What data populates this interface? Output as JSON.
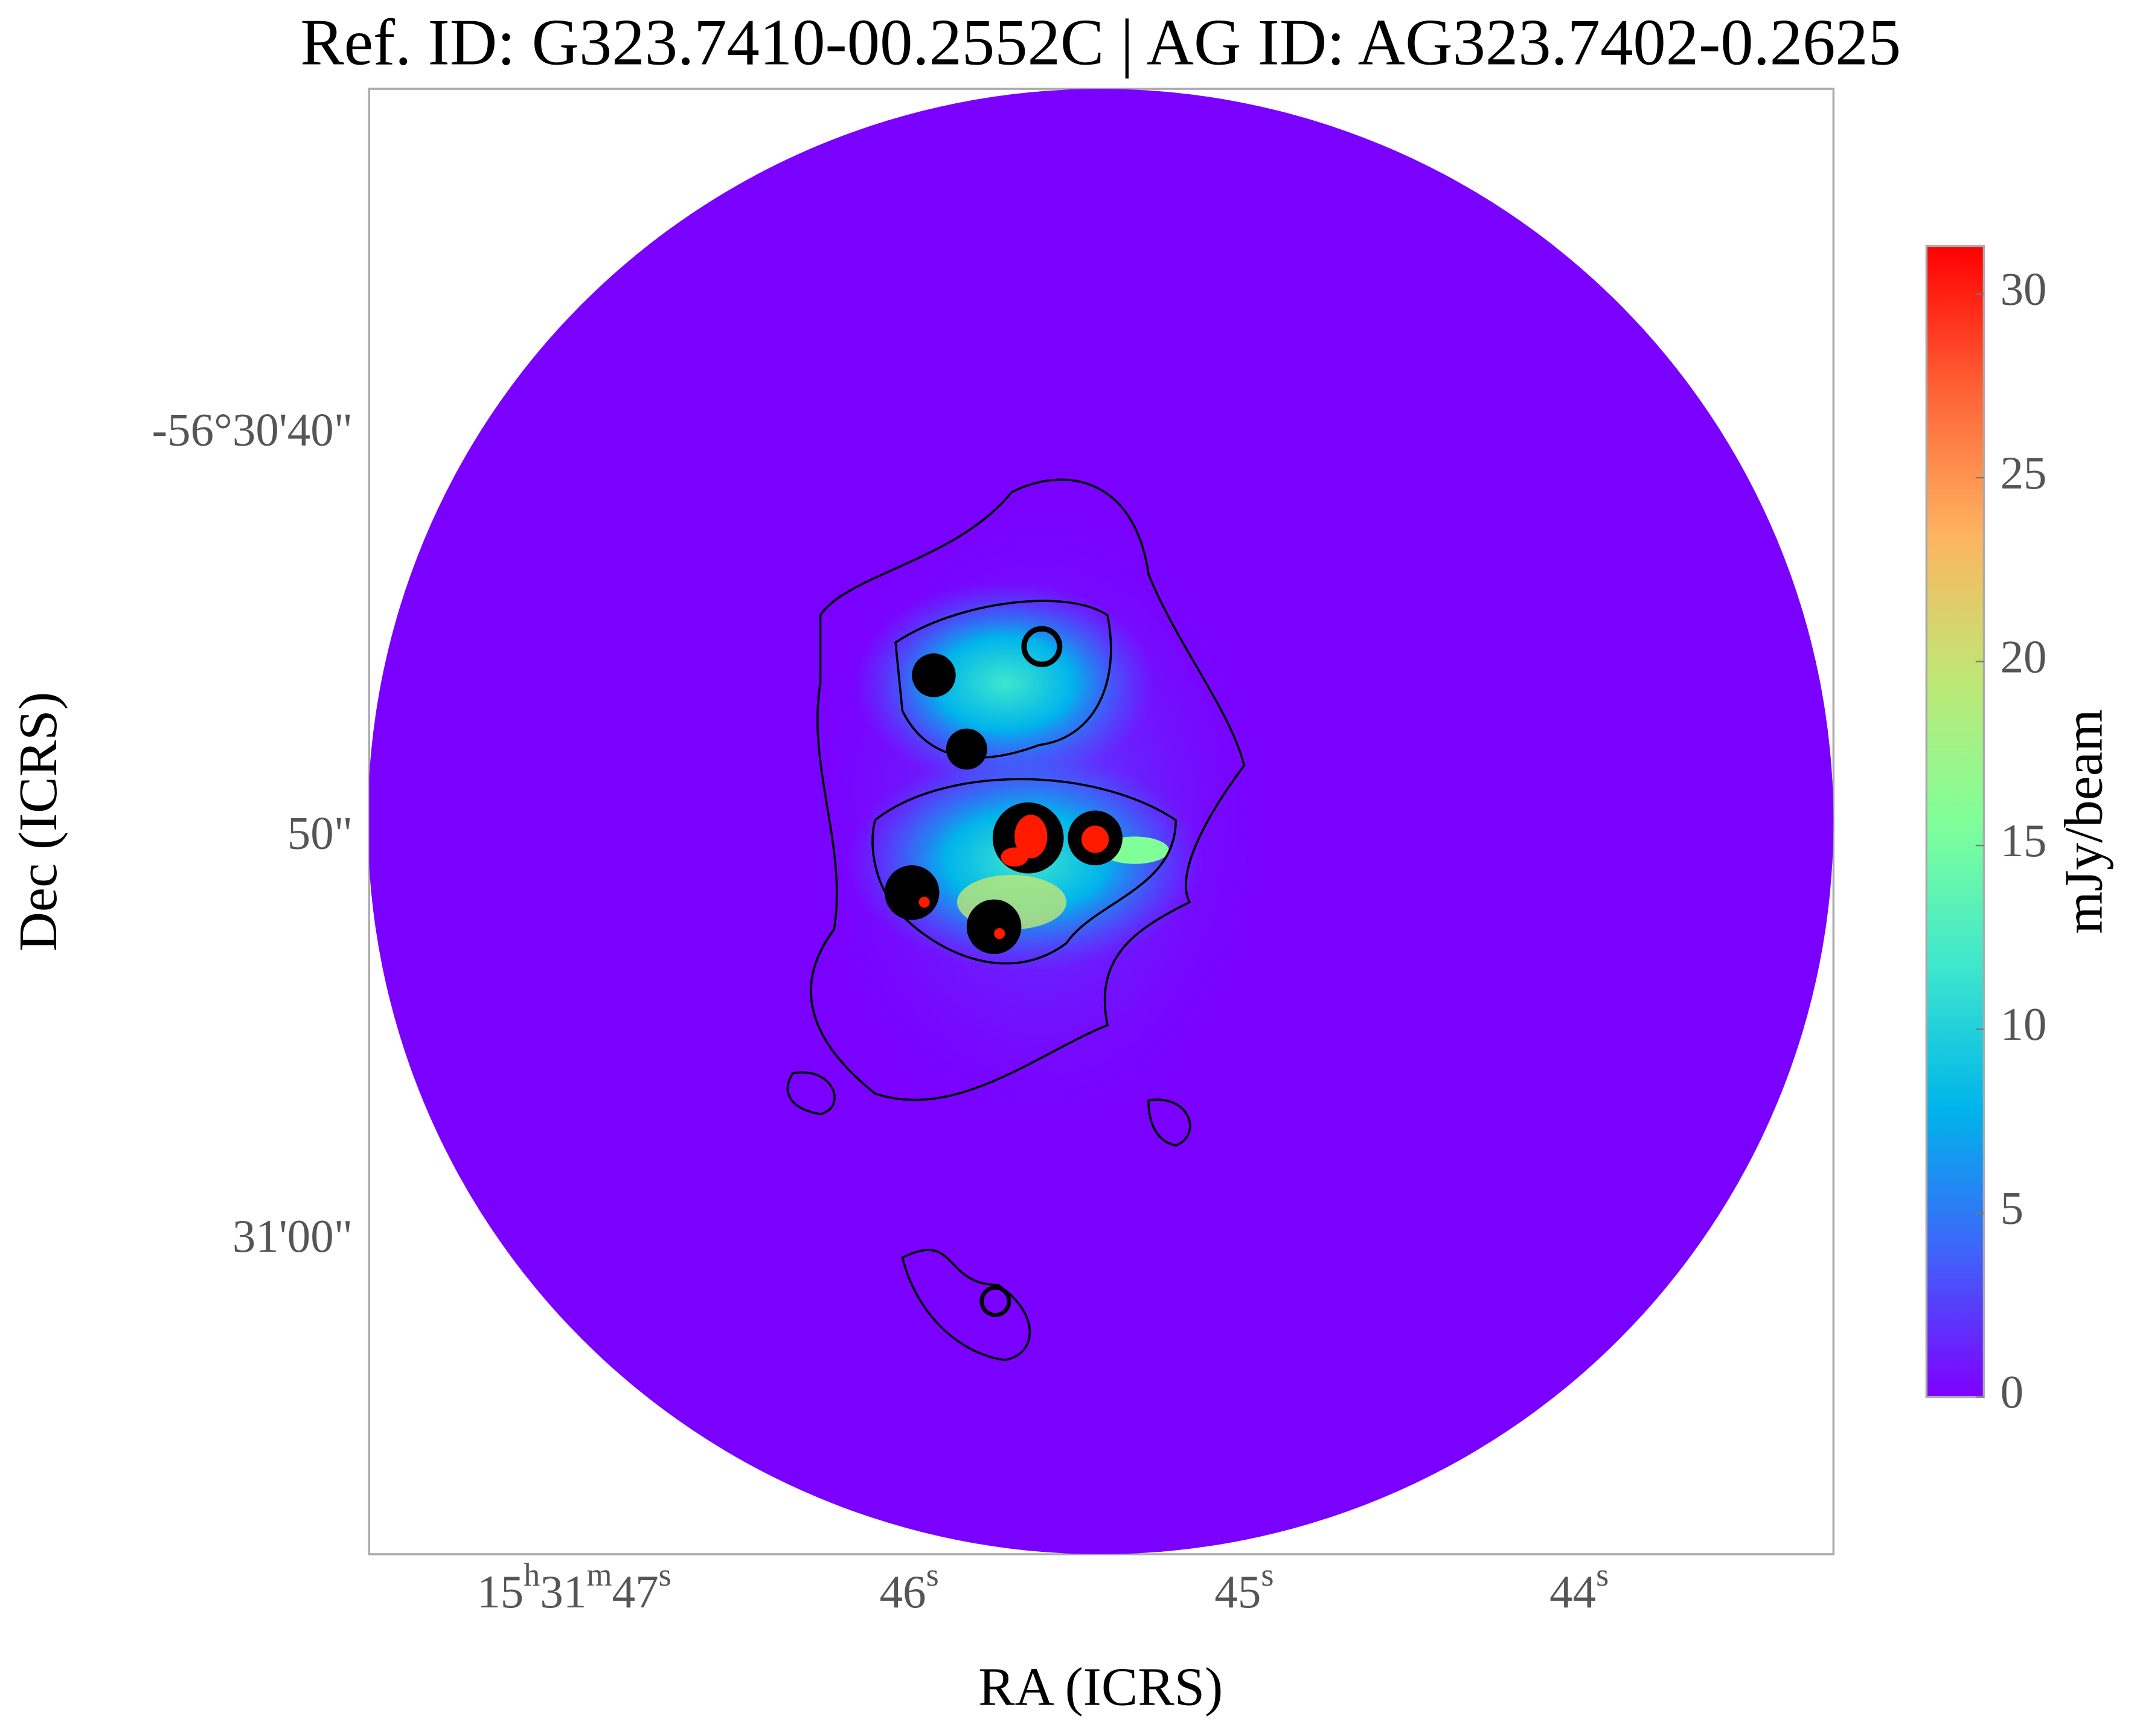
{
  "chart_data": {
    "type": "image",
    "title": "Ref. ID: G323.7410-00.2552C | AG ID: AG323.7402-0.2625",
    "xlabel": "RA (ICRS)",
    "ylabel": "Dec (ICRS)",
    "xticks": [
      "15h31m47s",
      "46s",
      "45s",
      "44s"
    ],
    "yticks": [
      "-56°30'40\"",
      "50\"",
      "31'00\""
    ],
    "colorbar": {
      "label": "mJy/beam",
      "lim": [
        0,
        31.3
      ],
      "ticks": [
        0,
        5,
        10,
        15,
        20,
        25,
        30
      ],
      "colors": [
        "#7f00ff",
        "#3f63f9",
        "#00b4eb",
        "#3fe7cd",
        "#80ff99",
        "#bfe775",
        "#ffb360",
        "#ff6237",
        "#ff0000"
      ]
    }
  }
}
